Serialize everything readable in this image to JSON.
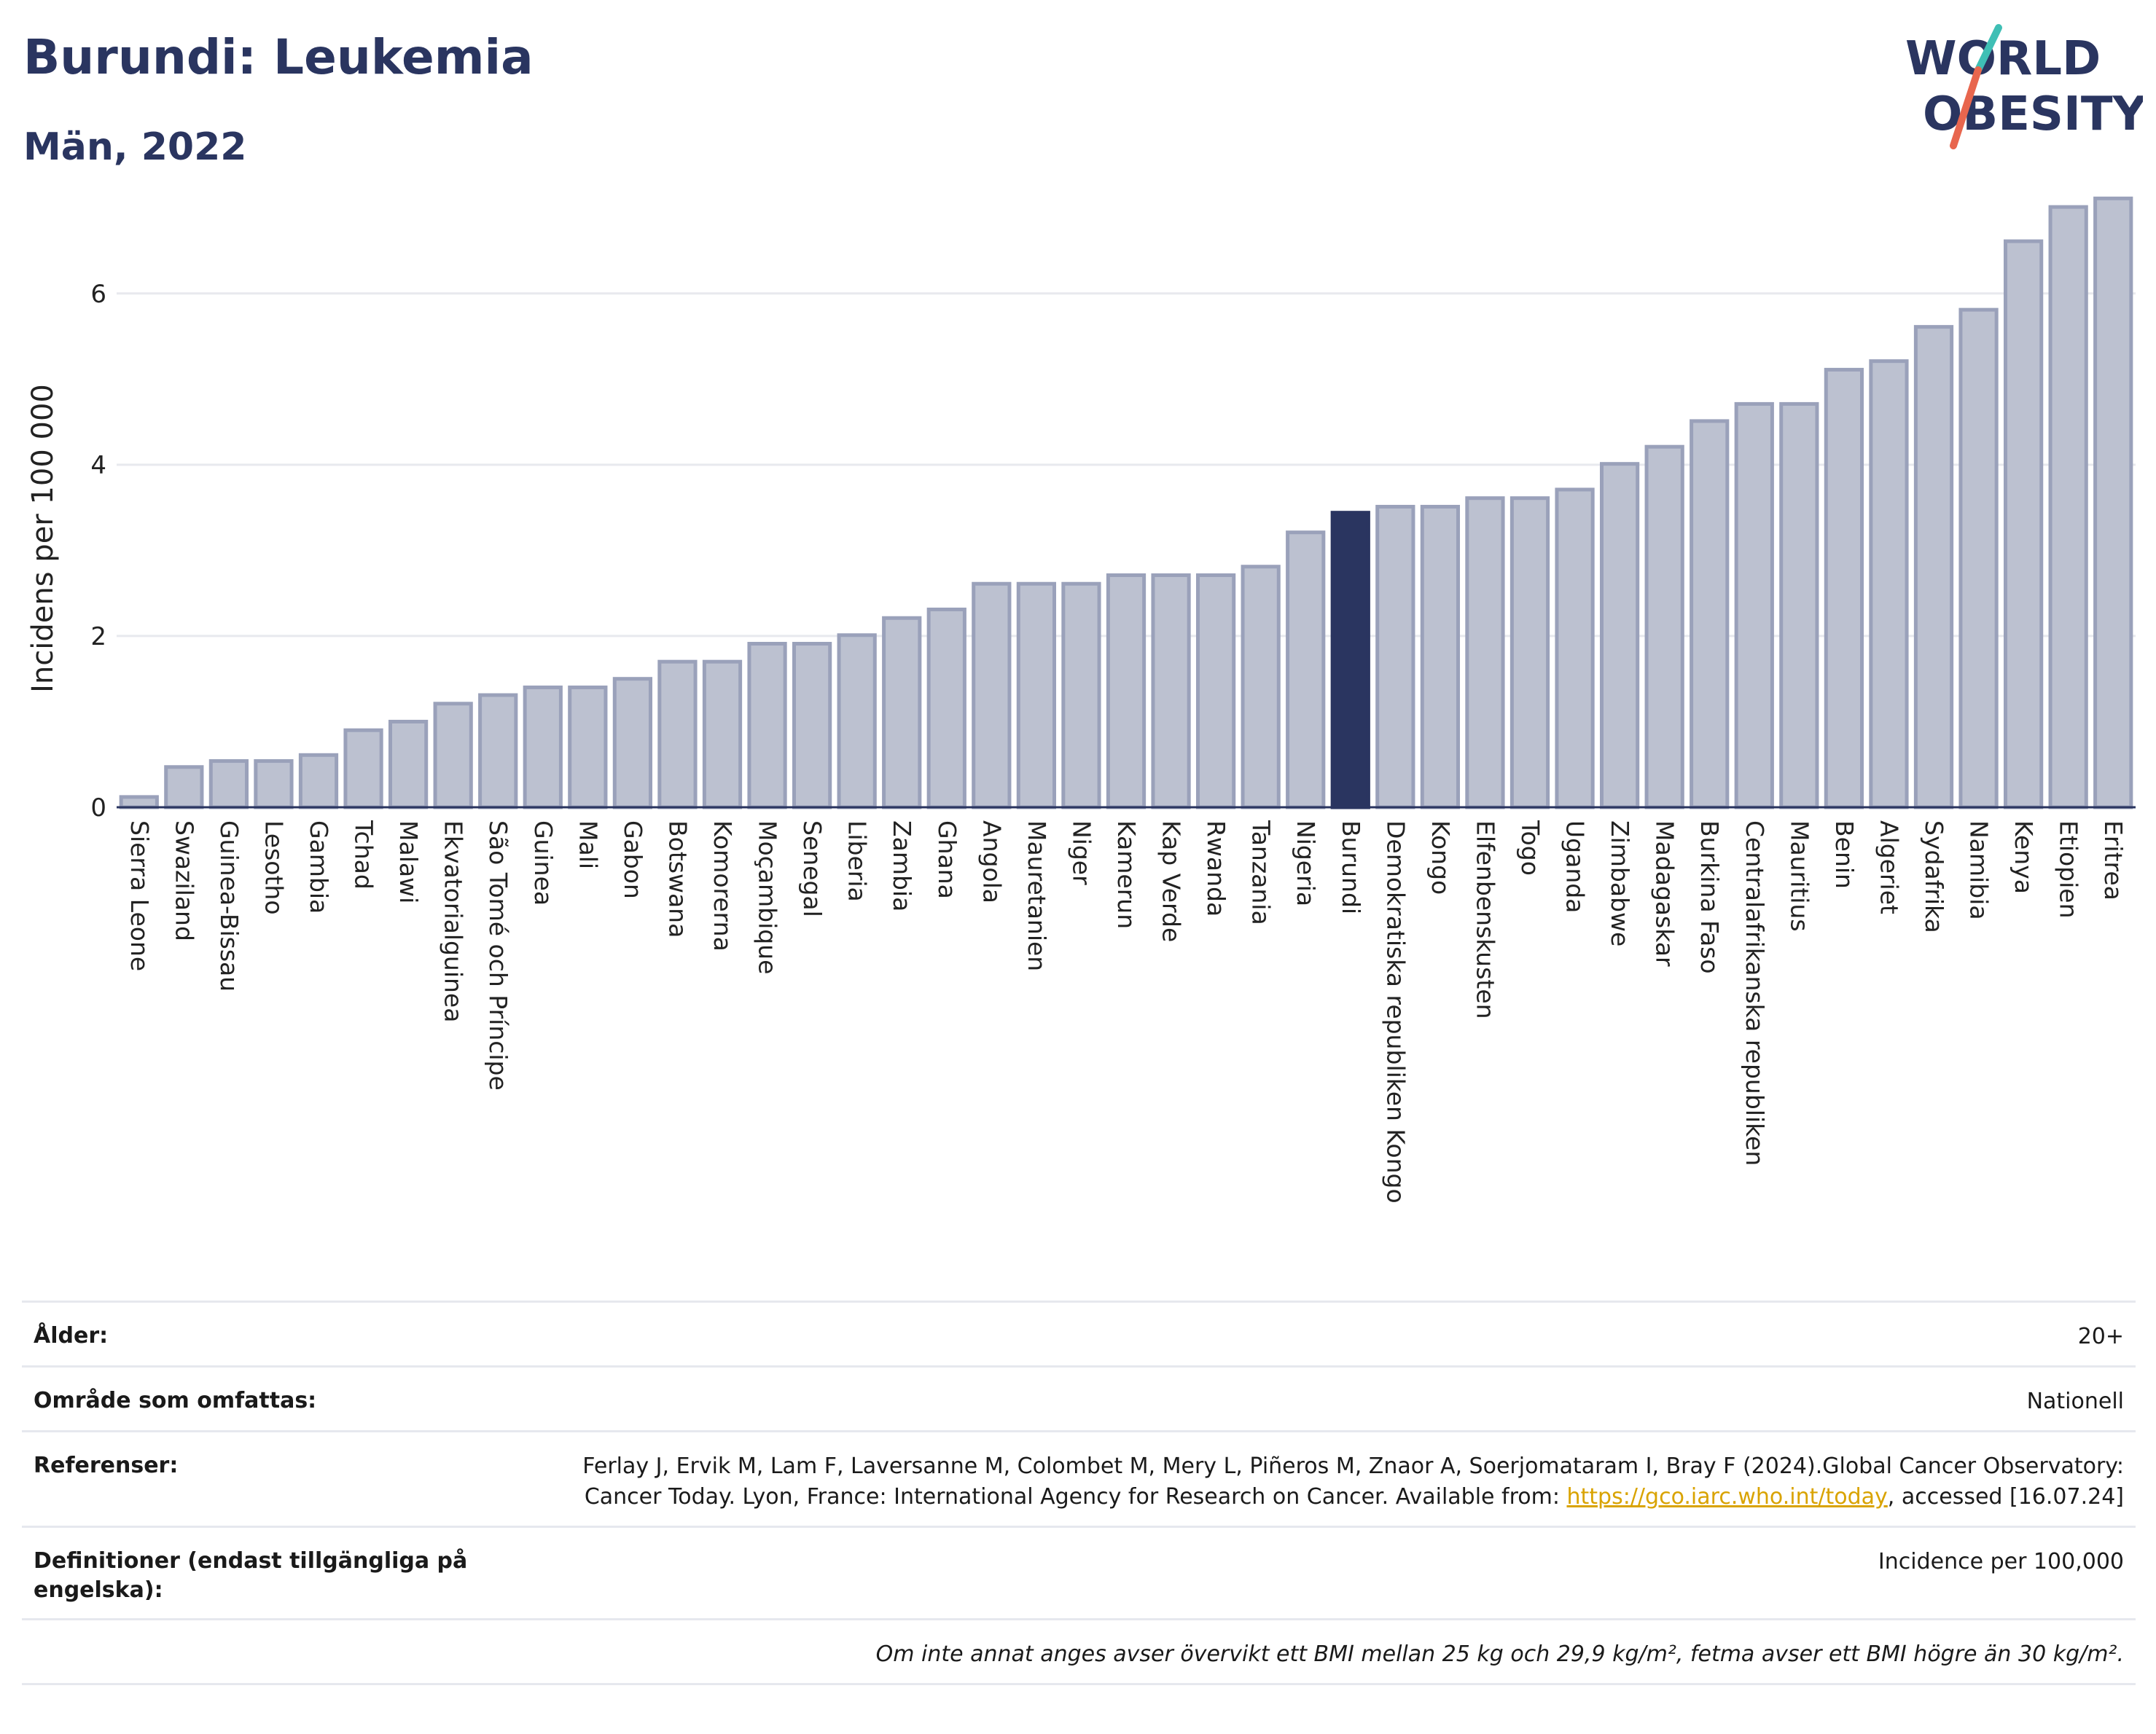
{
  "header": {
    "title": "Burundi: Leukemia",
    "subtitle": "Män, 2022"
  },
  "logo": {
    "line1": "WORLD",
    "line2": "OBESITY",
    "icon": "world-obesity-logo"
  },
  "colors": {
    "bar": "#bcc1d0",
    "bar_border": "#9aa1ba",
    "highlight": "#2a3560",
    "text": "#2a3560"
  },
  "chart_data": {
    "type": "bar",
    "ylabel": "Incidens per 100 000",
    "ylim": [
      0,
      7.3
    ],
    "yticks": [
      0,
      2,
      4,
      6
    ],
    "grid": true,
    "highlight": "Burundi",
    "categories": [
      "Sierra Leone",
      "Swaziland",
      "Guinea-Bissau",
      "Lesotho",
      "Gambia",
      "Tchad",
      "Malawi",
      "Ekvatorialguinea",
      "São Tomé och Príncipe",
      "Guinea",
      "Mali",
      "Gabon",
      "Botswana",
      "Komorerna",
      "Moçambique",
      "Senegal",
      "Liberia",
      "Zambia",
      "Ghana",
      "Angola",
      "Mauretanien",
      "Niger",
      "Kamerun",
      "Kap Verde",
      "Rwanda",
      "Tanzania",
      "Nigeria",
      "Burundi",
      "Demokratiska republiken Kongo",
      "Kongo",
      "Elfenbenskusten",
      "Togo",
      "Uganda",
      "Zimbabwe",
      "Madagaskar",
      "Burkina Faso",
      "Centralafrikanska republiken",
      "Mauritius",
      "Benin",
      "Algeriet",
      "Sydafrika",
      "Namibia",
      "Kenya",
      "Etiopien",
      "Eritrea"
    ],
    "values": [
      0.12,
      0.47,
      0.54,
      0.54,
      0.61,
      0.9,
      1.0,
      1.21,
      1.31,
      1.4,
      1.4,
      1.5,
      1.7,
      1.7,
      1.91,
      1.91,
      2.01,
      2.21,
      2.31,
      2.61,
      2.61,
      2.61,
      2.71,
      2.71,
      2.71,
      2.81,
      3.21,
      3.44,
      3.51,
      3.51,
      3.61,
      3.61,
      3.71,
      4.01,
      4.21,
      4.51,
      4.71,
      4.71,
      5.11,
      5.21,
      5.61,
      5.81,
      6.61,
      7.01,
      7.11
    ]
  },
  "info": {
    "age_label": "Ålder:",
    "age_value": "20+",
    "area_label": "Område som omfattas:",
    "area_value": "Nationell",
    "ref_label": "Referenser:",
    "ref_text_1": "Ferlay J, Ervik M, Lam F, Laversanne M, Colombet M, Mery L, Piñeros M, Znaor A, Soerjomataram I, Bray F (2024).Global Cancer Observatory: Cancer Today. Lyon, France: International Agency for Research on Cancer. Available from: ",
    "ref_link": "https://gco.iarc.who.int/today",
    "ref_text_2": ", accessed [16.07.24]",
    "def_label": "Definitioner (endast tillgängliga på engelska):",
    "def_value": "Incidence per 100,000",
    "note": "Om inte annat anges avser övervikt ett BMI mellan 25 kg och 29,9 kg/m², fetma avser ett BMI högre än 30 kg/m²."
  }
}
